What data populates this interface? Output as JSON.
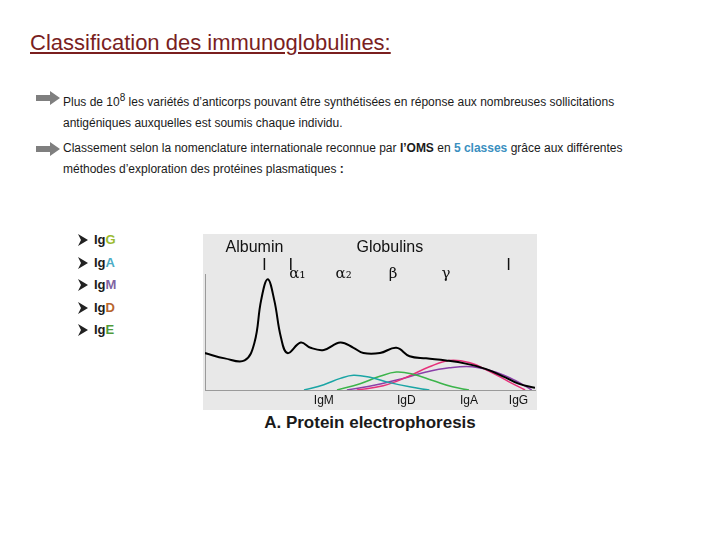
{
  "title": "Classification des immunoglobulines:",
  "bullets": [
    [
      {
        "text": "Plus de 10"
      },
      {
        "text": "8",
        "style": "sup"
      },
      {
        "text": " les variétés d’anticorps pouvant être synthétisées en réponse aux nombreuses sollicitations antigéniques auxquelles est soumis chaque individu."
      }
    ],
    [
      {
        "text": "Classement selon la nomenclature internationale reconnue par "
      },
      {
        "text": "l’OMS",
        "style": "bold"
      },
      {
        "text": " en "
      },
      {
        "text": "5 classes",
        "style": "highlight"
      },
      {
        "text": "  grâce aux différentes méthodes d’exploration des protéines plasmatiques "
      },
      {
        "text": ":",
        "style": "bold"
      }
    ]
  ],
  "classes": [
    {
      "prefix": "Ig",
      "letter": "G",
      "color": "#9bbb2f"
    },
    {
      "prefix": "Ig",
      "letter": "A",
      "color": "#4bacc6"
    },
    {
      "prefix": "Ig",
      "letter": "M",
      "color": "#8064a2"
    },
    {
      "prefix": "Ig",
      "letter": "D",
      "color": "#b8652e"
    },
    {
      "prefix": "Ig",
      "letter": "E",
      "color": "#4f9a3a"
    }
  ],
  "chart_data": {
    "type": "line",
    "title": "A. Protein electrophoresis",
    "xlim": [
      0,
      100
    ],
    "ylim": [
      0,
      110
    ],
    "tick_labels": false,
    "grid": false,
    "annotations": [
      {
        "text": "Albumin",
        "x": 15
      },
      {
        "text": "Globulins",
        "x": 56
      },
      {
        "text": "α₁",
        "x": 28
      },
      {
        "text": "α₂",
        "x": 42
      },
      {
        "text": "β",
        "x": 57
      },
      {
        "text": "γ",
        "x": 73
      }
    ],
    "marks": [
      18,
      26,
      92
    ],
    "series": [
      {
        "color": "#000000",
        "x": [
          0,
          6,
          12,
          15,
          17,
          19,
          21,
          23,
          25,
          29,
          32,
          36,
          41,
          45,
          48,
          53,
          58,
          62,
          67,
          73,
          79,
          85,
          91,
          95,
          100
        ],
        "values": [
          35,
          30,
          28,
          45,
          85,
          105,
          85,
          50,
          35,
          45,
          40,
          38,
          45,
          40,
          35,
          35,
          40,
          32,
          30,
          28,
          25,
          20,
          12,
          6,
          2
        ]
      },
      {
        "name": "IgM",
        "color": "#1aa5a5",
        "label_x": 36,
        "x": [
          30,
          36,
          41,
          45,
          50,
          56,
          62,
          68
        ],
        "values": [
          0,
          5,
          11,
          14,
          12,
          7,
          3,
          0
        ]
      },
      {
        "name": "IgD",
        "color": "#3cb44b",
        "label_x": 61,
        "x": [
          40,
          47,
          53,
          58,
          63,
          69,
          75,
          80
        ],
        "values": [
          0,
          6,
          13,
          17,
          15,
          9,
          3,
          0
        ]
      },
      {
        "name": "IgA",
        "color": "#e6307a",
        "label_x": 80,
        "x": [
          46,
          54,
          61,
          68,
          74,
          80,
          86,
          92,
          97
        ],
        "values": [
          0,
          4,
          12,
          22,
          28,
          26,
          18,
          8,
          0
        ]
      },
      {
        "name": "IgG",
        "color": "#8a3fa8",
        "label_x": 95,
        "x": [
          43,
          52,
          60,
          67,
          74,
          81,
          88,
          94,
          99
        ],
        "values": [
          0,
          5,
          11,
          17,
          21,
          22,
          17,
          9,
          0
        ]
      }
    ]
  }
}
